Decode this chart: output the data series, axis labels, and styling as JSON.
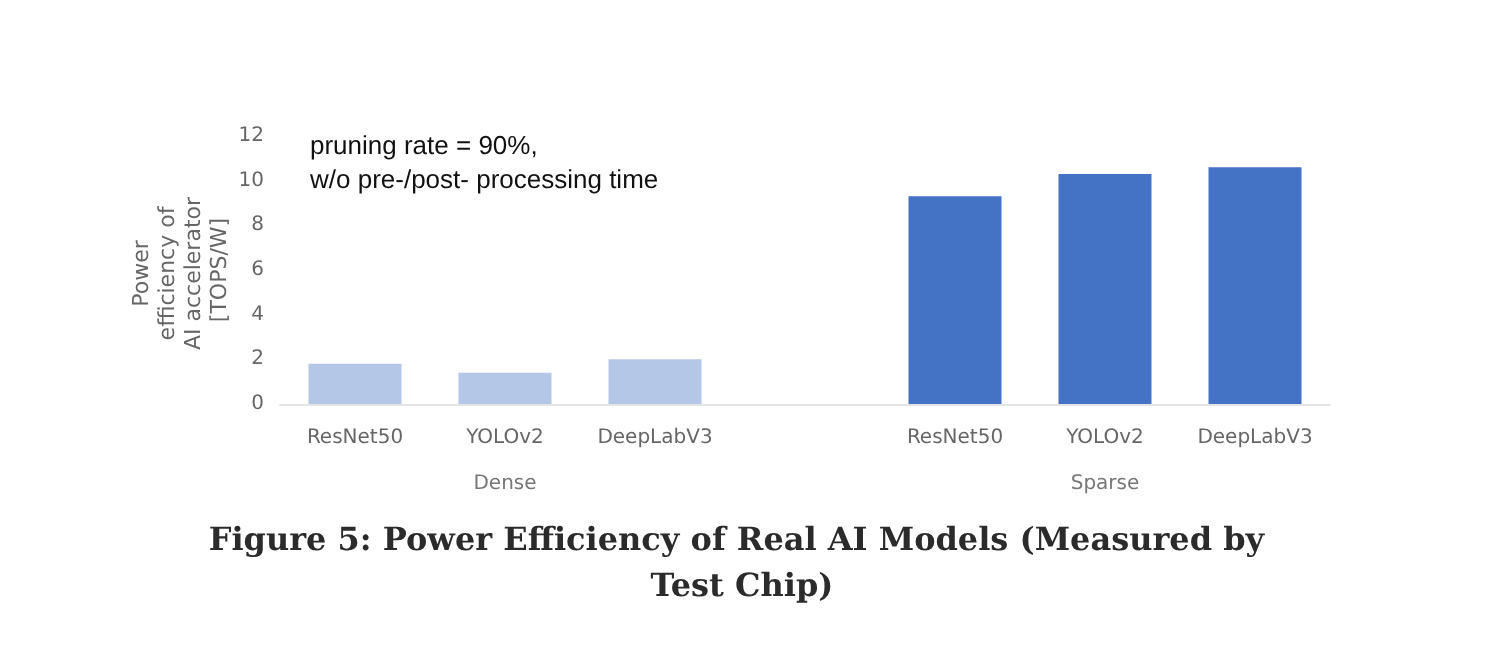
{
  "chart_data": {
    "type": "bar",
    "title": "Figure 5: Power Efficiency of Real AI Models (Measured by Test Chip)",
    "ylabel": "Power efficiency of AI accelerator [TOPS/W]",
    "categories": [
      "ResNet50",
      "YOLOv2",
      "DeepLabV3",
      null,
      "ResNet50",
      "YOLOv2",
      "DeepLabV3"
    ],
    "values": [
      1.8,
      1.4,
      2.0,
      null,
      9.3,
      10.3,
      10.6
    ],
    "colors": [
      "#b4c7e7",
      "#b4c7e7",
      "#b4c7e7",
      "#b4c7e7",
      "#4472c4",
      "#4472c4",
      "#4472c4"
    ],
    "ylim": [
      0,
      12
    ],
    "yticks": [
      0,
      2,
      4,
      6,
      8,
      10,
      12
    ],
    "grid": false,
    "annotations": [
      "pruning rate = 90%,\nw/o pre-/post- processing time",
      "Dense",
      "Sparse"
    ]
  }
}
